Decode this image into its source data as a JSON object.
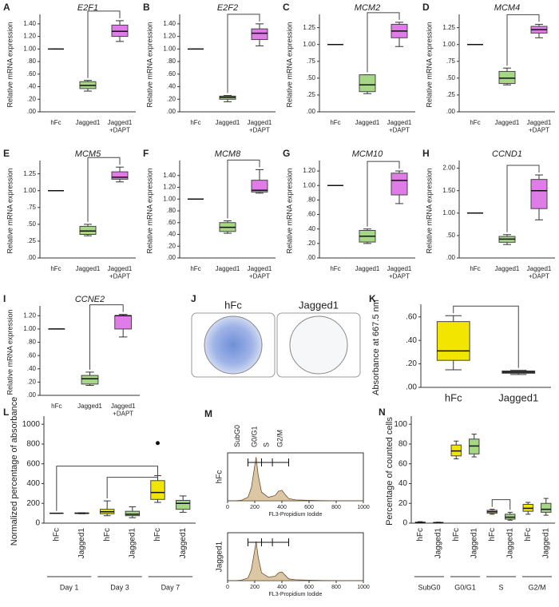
{
  "chart_data": [
    {
      "panel": "A",
      "type": "box",
      "title": "E2F1",
      "ylabel": "Relative mRNA expression",
      "categories": [
        "hFc",
        "Jagged1",
        "Jagged1 +DAPT"
      ],
      "colors": [
        "#555555",
        "#a6d785",
        "#e07ce8"
      ],
      "min": [
        1,
        0.33,
        1.12
      ],
      "q1": [
        1,
        0.37,
        1.2
      ],
      "median": [
        1,
        0.42,
        1.28
      ],
      "q3": [
        1,
        0.48,
        1.38
      ],
      "max": [
        1,
        0.5,
        1.45
      ],
      "ylim": [
        0,
        1.5
      ],
      "yticks": [
        {
          "value": 0,
          "label": ".00"
        },
        {
          "value": 0.2,
          "label": ".20"
        },
        {
          "value": 0.4,
          "label": ".40"
        },
        {
          "value": 0.6,
          "label": ".60"
        },
        {
          "value": 0.8,
          "label": ".80"
        },
        {
          "value": 1,
          "label": "1.00"
        },
        {
          "value": 1.2,
          "label": "1.20"
        },
        {
          "value": 1.4,
          "label": "1.40"
        }
      ]
    },
    {
      "panel": "B",
      "type": "box",
      "title": "E2F2",
      "ylabel": "Relative mRNA expression",
      "categories": [
        "hFc",
        "Jagged1",
        "Jagged1 +DAPT"
      ],
      "colors": [
        "#555555",
        "#a6d785",
        "#e07ce8"
      ],
      "min": [
        1,
        0.16,
        1.05
      ],
      "q1": [
        1,
        0.2,
        1.15
      ],
      "median": [
        1,
        0.23,
        1.25
      ],
      "q3": [
        1,
        0.25,
        1.32
      ],
      "max": [
        1,
        0.26,
        1.4
      ],
      "ylim": [
        0,
        1.5
      ],
      "yticks": [
        {
          "value": 0,
          "label": ".00"
        },
        {
          "value": 0.2,
          "label": ".20"
        },
        {
          "value": 0.4,
          "label": ".40"
        },
        {
          "value": 0.6,
          "label": ".60"
        },
        {
          "value": 0.8,
          "label": ".80"
        },
        {
          "value": 1,
          "label": "1.00"
        },
        {
          "value": 1.2,
          "label": "1.20"
        },
        {
          "value": 1.4,
          "label": "1.40"
        }
      ]
    },
    {
      "panel": "C",
      "type": "box",
      "title": "MCM2",
      "ylabel": "Relative mRNA expression",
      "categories": [
        "hFc",
        "Jagged1",
        "Jagged1 +DAPT"
      ],
      "colors": [
        "#555555",
        "#a6d785",
        "#e07ce8"
      ],
      "min": [
        1,
        0.27,
        0.97
      ],
      "q1": [
        1,
        0.3,
        1.1
      ],
      "median": [
        1,
        0.4,
        1.2
      ],
      "q3": [
        1,
        0.55,
        1.3
      ],
      "max": [
        1,
        0.55,
        1.33
      ],
      "ylim": [
        0,
        1.4
      ],
      "yticks": [
        {
          "value": 0,
          "label": ".00"
        },
        {
          "value": 0.25,
          "label": ".25"
        },
        {
          "value": 0.5,
          "label": ".50"
        },
        {
          "value": 0.75,
          "label": ".75"
        },
        {
          "value": 1,
          "label": "1.00"
        },
        {
          "value": 1.25,
          "label": "1.25"
        }
      ]
    },
    {
      "panel": "D",
      "type": "box",
      "title": "MCM4",
      "ylabel": "Relative mRNA expression",
      "categories": [
        "hFc",
        "Jagged1",
        "Jagged1 +DAPT"
      ],
      "colors": [
        "#555555",
        "#a6d785",
        "#e07ce8"
      ],
      "min": [
        1,
        0.4,
        1.1
      ],
      "q1": [
        1,
        0.42,
        1.17
      ],
      "median": [
        1,
        0.5,
        1.22
      ],
      "q3": [
        1,
        0.6,
        1.27
      ],
      "max": [
        1,
        0.65,
        1.3
      ],
      "ylim": [
        0,
        1.4
      ],
      "yticks": [
        {
          "value": 0,
          "label": ".00"
        },
        {
          "value": 0.25,
          "label": ".25"
        },
        {
          "value": 0.5,
          "label": ".50"
        },
        {
          "value": 0.75,
          "label": ".75"
        },
        {
          "value": 1,
          "label": "1.00"
        },
        {
          "value": 1.25,
          "label": "1.25"
        }
      ]
    },
    {
      "panel": "E",
      "type": "box",
      "title": "MCM5",
      "ylabel": "Relative mRNA expression",
      "categories": [
        "hFc",
        "Jagged1",
        "Jagged1 +DAPT"
      ],
      "colors": [
        "#555555",
        "#a6d785",
        "#e07ce8"
      ],
      "min": [
        1,
        0.33,
        1.13
      ],
      "q1": [
        1,
        0.35,
        1.17
      ],
      "median": [
        1,
        0.4,
        1.2
      ],
      "q3": [
        1,
        0.47,
        1.28
      ],
      "max": [
        1,
        0.5,
        1.35
      ],
      "ylim": [
        0,
        1.4
      ],
      "yticks": [
        {
          "value": 0,
          "label": ".00"
        },
        {
          "value": 0.25,
          "label": ".25"
        },
        {
          "value": 0.5,
          "label": ".50"
        },
        {
          "value": 0.75,
          "label": ".75"
        },
        {
          "value": 1,
          "label": "1.00"
        },
        {
          "value": 1.25,
          "label": "1.25"
        }
      ]
    },
    {
      "panel": "F",
      "type": "box",
      "title": "MCM8",
      "ylabel": "Relative mRNA expression",
      "categories": [
        "hFc",
        "Jagged1",
        "Jagged1 +DAPT"
      ],
      "colors": [
        "#555555",
        "#a6d785",
        "#e07ce8"
      ],
      "min": [
        1,
        0.42,
        1.1
      ],
      "q1": [
        1,
        0.45,
        1.12
      ],
      "median": [
        1,
        0.52,
        1.15
      ],
      "q3": [
        1,
        0.6,
        1.32
      ],
      "max": [
        1,
        0.63,
        1.5
      ],
      "ylim": [
        0,
        1.6
      ],
      "yticks": [
        {
          "value": 0,
          "label": ".00"
        },
        {
          "value": 0.2,
          "label": ".20"
        },
        {
          "value": 0.4,
          "label": ".40"
        },
        {
          "value": 0.6,
          "label": ".60"
        },
        {
          "value": 0.8,
          "label": ".80"
        },
        {
          "value": 1,
          "label": "1.00"
        },
        {
          "value": 1.2,
          "label": "1.20"
        },
        {
          "value": 1.4,
          "label": "1.40"
        }
      ]
    },
    {
      "panel": "G",
      "type": "box",
      "title": "MCM10",
      "ylabel": "Relative mRNA expression",
      "categories": [
        "hFc",
        "Jagged1",
        "Jagged1 +DAPT"
      ],
      "colors": [
        "#555555",
        "#a6d785",
        "#e07ce8"
      ],
      "min": [
        1,
        0.2,
        0.75
      ],
      "q1": [
        1,
        0.22,
        0.87
      ],
      "median": [
        1,
        0.3,
        1.07
      ],
      "q3": [
        1,
        0.38,
        1.17
      ],
      "max": [
        1,
        0.4,
        1.2
      ],
      "ylim": [
        0,
        1.3
      ],
      "yticks": [
        {
          "value": 0,
          "label": ".00"
        },
        {
          "value": 0.2,
          "label": ".20"
        },
        {
          "value": 0.4,
          "label": ".40"
        },
        {
          "value": 0.6,
          "label": ".60"
        },
        {
          "value": 0.8,
          "label": ".80"
        },
        {
          "value": 1,
          "label": "1.00"
        },
        {
          "value": 1.2,
          "label": "1.20"
        }
      ]
    },
    {
      "panel": "H",
      "type": "box",
      "title": "CCND1",
      "ylabel": "Relative mRNA expression",
      "categories": [
        "hFc",
        "Jagged1",
        "Jagged1 +DAPT"
      ],
      "colors": [
        "#555555",
        "#a6d785",
        "#e07ce8"
      ],
      "min": [
        1,
        0.3,
        0.85
      ],
      "q1": [
        1,
        0.35,
        1.1
      ],
      "median": [
        1,
        0.42,
        1.5
      ],
      "q3": [
        1,
        0.48,
        1.75
      ],
      "max": [
        1,
        0.52,
        1.85
      ],
      "ylim": [
        0,
        2.1
      ],
      "yticks": [
        {
          "value": 0,
          "label": ".00"
        },
        {
          "value": 0.5,
          "label": ".50"
        },
        {
          "value": 1,
          "label": "1.00"
        },
        {
          "value": 1.5,
          "label": "1.50"
        },
        {
          "value": 2,
          "label": "2.00"
        }
      ]
    },
    {
      "panel": "I",
      "type": "box",
      "title": "CCNE2",
      "ylabel": "Relative mRNA expression",
      "categories": [
        "hFc",
        "Jagged1",
        "Jagged1 +DAPT"
      ],
      "colors": [
        "#555555",
        "#a6d785",
        "#e07ce8"
      ],
      "min": [
        1,
        0.15,
        0.88
      ],
      "q1": [
        1,
        0.17,
        1.0
      ],
      "median": [
        1,
        0.25,
        1.2
      ],
      "q3": [
        1,
        0.3,
        1.2
      ],
      "max": [
        1,
        0.35,
        1.22
      ],
      "ylim": [
        0,
        1.3
      ],
      "yticks": [
        {
          "value": 0,
          "label": ".00"
        },
        {
          "value": 0.2,
          "label": ".20"
        },
        {
          "value": 0.4,
          "label": ".40"
        },
        {
          "value": 0.6,
          "label": ".60"
        },
        {
          "value": 0.8,
          "label": ".80"
        },
        {
          "value": 1,
          "label": "1.00"
        },
        {
          "value": 1.2,
          "label": "1.20"
        }
      ]
    },
    {
      "panel": "J",
      "type": "image",
      "labels": [
        "hFc",
        "Jagged1"
      ]
    },
    {
      "panel": "K",
      "type": "box",
      "ylabel": "Absorbance at 667.5 nm",
      "categories": [
        "hFc",
        "Jagged1"
      ],
      "colors": [
        "#f2e600",
        "#777777"
      ],
      "min": [
        0.15,
        0.11
      ],
      "q1": [
        0.23,
        0.12
      ],
      "median": [
        0.31,
        0.13
      ],
      "q3": [
        0.56,
        0.14
      ],
      "max": [
        0.61,
        0.145
      ],
      "ylim": [
        0,
        0.68
      ],
      "yticks": [
        {
          "value": 0,
          "label": ".00"
        },
        {
          "value": 0.2,
          "label": ".20"
        },
        {
          "value": 0.4,
          "label": ".40"
        },
        {
          "value": 0.6,
          "label": ".60"
        }
      ]
    },
    {
      "panel": "L",
      "type": "box",
      "ylabel": "Normalized percentage of absorbance",
      "categories": [
        "hFc",
        "Jagged1",
        "hFc",
        "Jagged1",
        "hFc",
        "Jagged1"
      ],
      "groups": [
        "Day 1",
        "Day 3",
        "Day 7"
      ],
      "colors": [
        "#777777",
        "#777777",
        "#f2e600",
        "#a6d785",
        "#f2e600",
        "#a6d785"
      ],
      "min": [
        100,
        95,
        75,
        55,
        210,
        110
      ],
      "q1": [
        100,
        98,
        95,
        75,
        240,
        140
      ],
      "median": [
        100,
        100,
        115,
        90,
        310,
        200
      ],
      "q3": [
        100,
        103,
        140,
        120,
        430,
        230
      ],
      "max": [
        100,
        105,
        225,
        165,
        480,
        275
      ],
      "outliers": [
        null,
        null,
        null,
        null,
        810,
        null
      ],
      "ylim": [
        0,
        1050
      ],
      "yticks": [
        0,
        200,
        400,
        600,
        800,
        1000
      ]
    },
    {
      "panel": "M",
      "type": "area",
      "xlabel": "FL3-Propidium Iodide",
      "gate_labels": [
        "SubG0",
        "G0/G1",
        "S",
        "G2/M"
      ],
      "gates": [
        150,
        250,
        330,
        450
      ],
      "x": [
        0,
        50,
        100,
        150,
        175,
        200,
        210,
        225,
        250,
        300,
        350,
        375,
        400,
        425,
        450,
        500,
        600,
        700,
        800,
        1000
      ],
      "series": [
        {
          "name": "hFc",
          "values": [
            0,
            0,
            1,
            8,
            30,
            80,
            100,
            60,
            20,
            8,
            12,
            22,
            24,
            14,
            5,
            2,
            1,
            0.5,
            0.2,
            0
          ]
        },
        {
          "name": "Jagged1",
          "values": [
            0,
            0,
            1,
            6,
            25,
            70,
            90,
            55,
            18,
            8,
            10,
            18,
            20,
            12,
            4,
            2,
            1,
            0.5,
            0.2,
            0
          ]
        }
      ],
      "xlim": [
        0,
        1000
      ],
      "ylim": [
        0,
        110
      ],
      "xticks": [
        0,
        200,
        400,
        600,
        800,
        1000
      ]
    },
    {
      "panel": "N",
      "type": "box",
      "ylabel": "Percentage of counted cells",
      "categories": [
        "hFc",
        "Jagged1",
        "hFc",
        "Jagged1",
        "hFc",
        "Jagged1",
        "hFc",
        "Jagged1"
      ],
      "groups": [
        "SubG0",
        "G0/G1",
        "S",
        "G2/M"
      ],
      "colors": [
        "#f2e600",
        "#a6d785",
        "#f2e600",
        "#a6d785",
        "#f2e600",
        "#a6d785",
        "#f2e600",
        "#a6d785"
      ],
      "min": [
        0,
        0,
        65,
        67,
        9,
        3,
        9,
        8
      ],
      "q1": [
        0.3,
        0.2,
        68,
        70,
        10,
        4,
        12,
        11
      ],
      "median": [
        0.5,
        0.4,
        73,
        78,
        11.5,
        6,
        15,
        14
      ],
      "q3": [
        1,
        0.7,
        79,
        85,
        13,
        9,
        19,
        20
      ],
      "max": [
        1.5,
        1,
        83,
        90,
        14,
        11,
        21,
        25
      ],
      "ylim": [
        0,
        105
      ],
      "yticks": [
        0,
        20,
        40,
        60,
        80,
        100
      ]
    }
  ]
}
